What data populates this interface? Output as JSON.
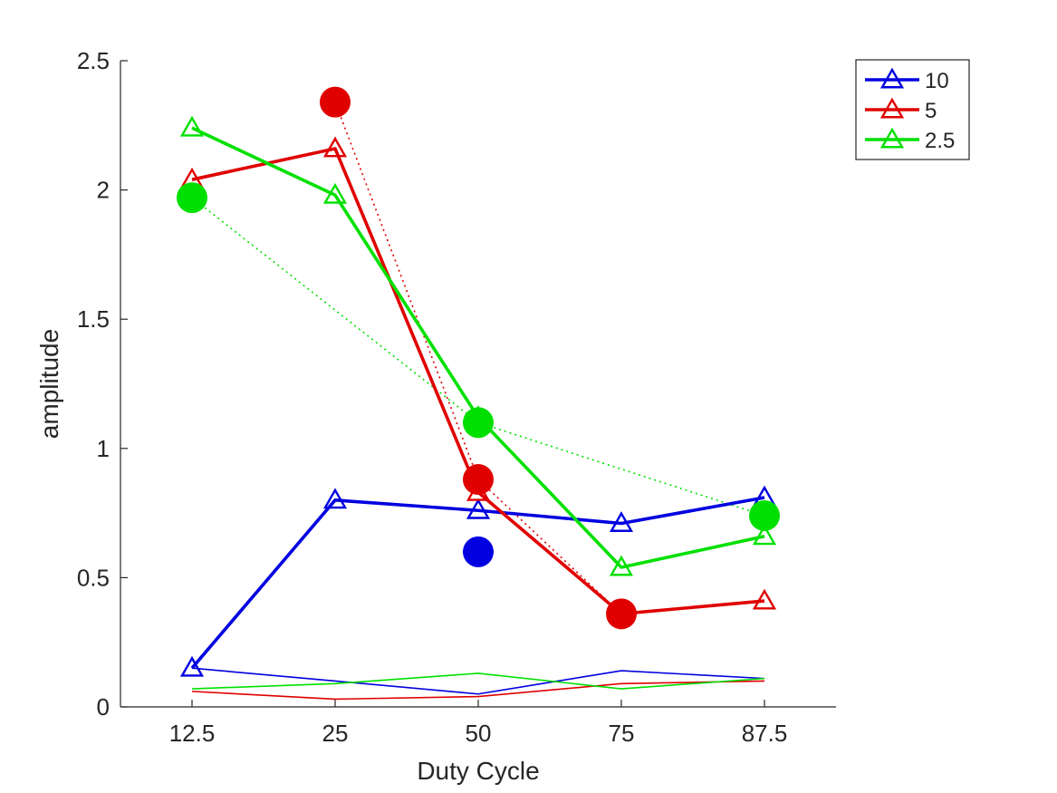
{
  "chart_data": {
    "type": "line",
    "xlabel": "Duty Cycle",
    "ylabel": "amplitude",
    "categories": [
      "12.5",
      "25",
      "50",
      "75",
      "87.5"
    ],
    "ylim": [
      0,
      2.5
    ],
    "yticks": [
      "0",
      "0.5",
      "1",
      "1.5",
      "2",
      "2.5"
    ],
    "legend_position": "top-right outside",
    "grid": false,
    "series": [
      {
        "name": "10",
        "color": "#0000e0",
        "style": "thick-triangles",
        "values": [
          0.15,
          0.8,
          0.76,
          0.71,
          0.81
        ]
      },
      {
        "name": "5",
        "color": "#e00000",
        "style": "thick-triangles",
        "values": [
          2.04,
          2.16,
          0.83,
          0.36,
          0.41
        ]
      },
      {
        "name": "2.5",
        "color": "#00e000",
        "style": "thick-triangles",
        "values": [
          2.24,
          1.98,
          1.12,
          0.54,
          0.66
        ]
      }
    ],
    "thin_series": [
      {
        "color": "#0000e0",
        "values": [
          0.15,
          0.1,
          0.05,
          0.14,
          0.11
        ]
      },
      {
        "color": "#e00000",
        "values": [
          0.06,
          0.03,
          0.04,
          0.09,
          0.1
        ]
      },
      {
        "color": "#00e000",
        "values": [
          0.07,
          0.09,
          0.13,
          0.07,
          0.11
        ]
      }
    ],
    "dot_series": [
      {
        "color": "#0000e0",
        "points": [
          [
            2,
            0.6
          ]
        ],
        "connected": false
      },
      {
        "color": "#e00000",
        "points": [
          [
            1,
            2.34
          ],
          [
            2,
            0.88
          ],
          [
            3,
            0.36
          ]
        ],
        "connected": true
      },
      {
        "color": "#00e000",
        "points": [
          [
            0,
            1.97
          ],
          [
            2,
            1.1
          ],
          [
            4,
            0.74
          ]
        ],
        "connected": true
      }
    ]
  }
}
